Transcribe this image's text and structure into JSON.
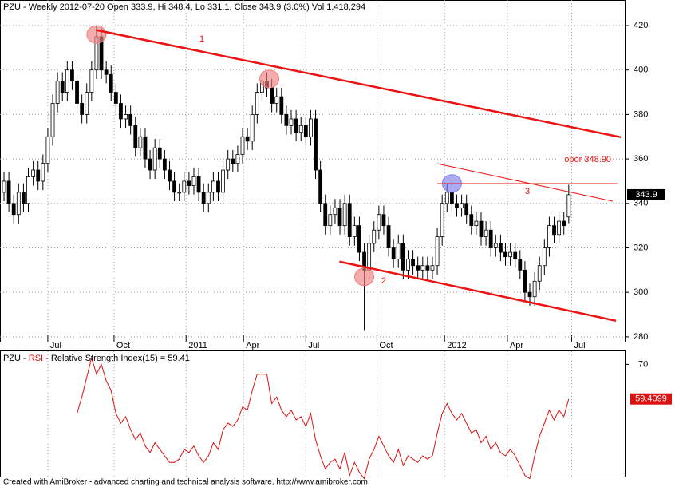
{
  "chart_data": [
    {
      "type": "candlestick",
      "title": "PZU - Weekly 2012-07-20 Open 333.9, Hi 348.4, Lo 331.1, Close 343.9 (3.0%) Vol 1,418,294",
      "xlim": [
        -0.82,
        127.5
      ],
      "ylim": [
        277.8,
        431.5
      ],
      "yticks": [
        280,
        300,
        320,
        340,
        360,
        380,
        400,
        420
      ],
      "xticks": [
        {
          "value": 9,
          "label": "Jul"
        },
        {
          "value": 22.6,
          "label": "Oct"
        },
        {
          "value": 37.4,
          "label": "2011"
        },
        {
          "value": 49.2,
          "label": "Apr"
        },
        {
          "value": 62,
          "label": "Jul"
        },
        {
          "value": 76.6,
          "label": "Oct"
        },
        {
          "value": 90.5,
          "label": "2012"
        },
        {
          "value": 103.4,
          "label": "Apr"
        },
        {
          "value": 116.6,
          "label": "Jul"
        }
      ],
      "grid": true,
      "up_color": "#ffffff",
      "down_color": "#000000",
      "open": [
        345,
        350,
        340,
        335,
        345,
        340,
        352,
        355,
        350,
        358,
        370,
        385,
        395,
        390,
        400,
        395,
        385,
        380,
        390,
        400,
        415,
        400,
        398,
        390,
        385,
        378,
        380,
        375,
        365,
        370,
        360,
        355,
        365,
        360,
        355,
        350,
        345,
        345,
        350,
        348,
        352,
        345,
        340,
        345,
        350,
        345,
        355,
        360,
        358,
        362,
        370,
        368,
        380,
        390,
        395,
        392,
        385,
        388,
        380,
        375,
        378,
        372,
        375,
        370,
        378,
        355,
        340,
        330,
        335,
        338,
        330,
        340,
        325,
        330,
        318,
        310,
        322,
        328,
        335,
        330,
        320,
        315,
        322,
        310,
        315,
        312,
        310,
        312,
        310,
        312,
        325,
        340,
        345,
        340,
        338,
        340,
        335,
        330,
        332,
        325,
        328,
        320,
        322,
        318,
        316,
        318,
        315,
        310,
        300,
        298,
        305,
        312,
        320,
        330,
        326,
        332,
        333.9
      ],
      "high": [
        354,
        354,
        344,
        349,
        349,
        356,
        359,
        359,
        362,
        374,
        389,
        399,
        399,
        404,
        404,
        399,
        389,
        394,
        404,
        420,
        419,
        404,
        402,
        394,
        389,
        384,
        384,
        379,
        374,
        374,
        364,
        369,
        369,
        364,
        359,
        354,
        349,
        354,
        354,
        356,
        356,
        349,
        349,
        354,
        354,
        359,
        364,
        364,
        366,
        374,
        374,
        384,
        394,
        399,
        399,
        396,
        392,
        392,
        384,
        382,
        382,
        379,
        379,
        382,
        382,
        359,
        344,
        339,
        342,
        342,
        344,
        344,
        334,
        334,
        322,
        326,
        332,
        339,
        339,
        334,
        324,
        326,
        326,
        319,
        319,
        316,
        316,
        316,
        316,
        329,
        344,
        349,
        349,
        344,
        344,
        344,
        339,
        336,
        336,
        332,
        332,
        326,
        326,
        322,
        322,
        322,
        319,
        314,
        304,
        309,
        316,
        324,
        334,
        334,
        336,
        336,
        348.4
      ],
      "low": [
        341,
        336,
        331,
        331,
        336,
        336,
        348,
        346,
        346,
        354,
        366,
        381,
        386,
        386,
        391,
        381,
        376,
        376,
        386,
        396,
        396,
        394,
        386,
        381,
        374,
        374,
        371,
        361,
        361,
        356,
        351,
        351,
        356,
        351,
        346,
        341,
        341,
        341,
        344,
        344,
        341,
        336,
        336,
        341,
        341,
        341,
        351,
        354,
        354,
        358,
        364,
        364,
        376,
        386,
        388,
        381,
        381,
        376,
        371,
        371,
        368,
        368,
        366,
        366,
        351,
        336,
        326,
        326,
        331,
        326,
        326,
        321,
        321,
        314,
        283,
        306,
        318,
        324,
        326,
        316,
        311,
        311,
        306,
        306,
        308,
        306,
        306,
        306,
        306,
        308,
        321,
        336,
        336,
        334,
        334,
        331,
        326,
        326,
        321,
        321,
        316,
        316,
        314,
        312,
        312,
        311,
        306,
        296,
        294,
        294,
        301,
        308,
        316,
        322,
        322,
        326,
        331.1
      ],
      "close": [
        350,
        340,
        335,
        345,
        340,
        352,
        355,
        350,
        358,
        370,
        385,
        395,
        390,
        400,
        395,
        385,
        380,
        390,
        400,
        415,
        400,
        398,
        390,
        385,
        378,
        380,
        375,
        365,
        370,
        360,
        355,
        365,
        360,
        355,
        350,
        345,
        345,
        350,
        348,
        352,
        345,
        340,
        345,
        350,
        345,
        355,
        360,
        358,
        362,
        370,
        368,
        380,
        390,
        395,
        392,
        385,
        388,
        380,
        375,
        378,
        372,
        375,
        370,
        378,
        355,
        340,
        330,
        335,
        338,
        330,
        340,
        325,
        330,
        318,
        310,
        322,
        328,
        335,
        330,
        320,
        315,
        322,
        310,
        315,
        312,
        310,
        312,
        310,
        312,
        325,
        340,
        345,
        340,
        338,
        340,
        335,
        330,
        332,
        325,
        328,
        320,
        322,
        318,
        316,
        318,
        315,
        310,
        300,
        298,
        305,
        312,
        320,
        330,
        326,
        332,
        330,
        343.9
      ],
      "trend_lines": [
        {
          "label": "1",
          "color": "#ee1111",
          "width": 2.5,
          "points": [
            [
              18.9,
              418
            ],
            [
              126.7,
              369.8
            ]
          ]
        },
        {
          "label": "2",
          "color": "#ee1111",
          "width": 2.5,
          "points": [
            [
              68.9,
              313.8
            ],
            [
              125.7,
              287.2
            ]
          ]
        },
        {
          "label": "3",
          "color": "#ee1111",
          "width": 1,
          "points": [
            [
              89,
              357.9
            ],
            [
              125,
              341
            ]
          ]
        },
        {
          "label": "opór 348.90",
          "color": "#ee1111",
          "width": 1,
          "points": [
            [
              89,
              348.9
            ],
            [
              126,
              348.9
            ]
          ]
        }
      ],
      "circles": [
        {
          "color": "#f08080",
          "points": [
            [
              19,
              416
            ],
            [
              54.5,
              396
            ],
            [
              74,
              307
            ]
          ]
        },
        {
          "color": "#8080f0",
          "points": [
            [
              92,
              349
            ]
          ]
        }
      ]
    },
    {
      "type": "line",
      "title_parts": [
        "PZU - ",
        "RSI",
        " - Relative Strength Index(15) = 59.41"
      ],
      "last_label": "59.4099",
      "xlim": [
        -0.82,
        127.5
      ],
      "ylim": [
        35.4,
        74
      ],
      "yticks": [
        70
      ],
      "series": [
        {
          "name": "RSI",
          "color": "#dd1111",
          "values": [
            null,
            null,
            null,
            null,
            null,
            null,
            null,
            null,
            null,
            null,
            null,
            null,
            null,
            null,
            null,
            55,
            60,
            66,
            72,
            67,
            70,
            65,
            62,
            55,
            52,
            54,
            50,
            47,
            49,
            45,
            43,
            46,
            44,
            42,
            40,
            40,
            41,
            44,
            43,
            45,
            42,
            40,
            42,
            46,
            44,
            50,
            52,
            51,
            53,
            57,
            56,
            62,
            67,
            67,
            67,
            58,
            60,
            56,
            54,
            56,
            53,
            54,
            51,
            55,
            47,
            42,
            38,
            40,
            41,
            38,
            43,
            36,
            40,
            37,
            35,
            41,
            44,
            48,
            45,
            42,
            40,
            44,
            39,
            42,
            41,
            40,
            42,
            41,
            42,
            49,
            55,
            58,
            55,
            53,
            55,
            52,
            49,
            50,
            46,
            48,
            44,
            46,
            43,
            42,
            44,
            42,
            39,
            36,
            35,
            42,
            48,
            52,
            56,
            53,
            56,
            54,
            59.41
          ]
        }
      ]
    }
  ],
  "footer": "Created with AmiBroker - advanced charting and technical analysis software. http://www.amibroker.com"
}
